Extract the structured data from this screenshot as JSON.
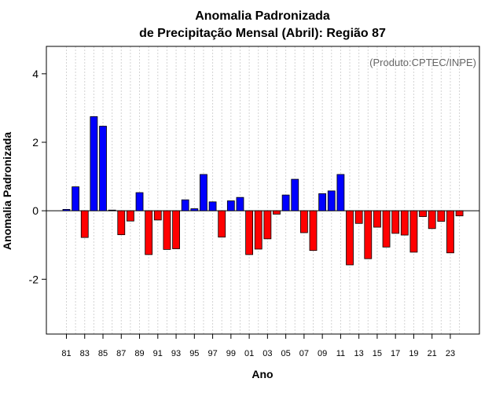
{
  "chart_data": {
    "type": "bar",
    "title_line1": "Anomalia Padronizada",
    "title_line2": "de Precipitação Mensal (Abril): Região 87",
    "xlabel": "Ano",
    "ylabel": "Anomalia Padronizada",
    "annotation": "(Produto:CPTEC/INPE)",
    "ylim": [
      -3.6,
      4.8
    ],
    "yticks": [
      -2,
      0,
      2,
      4
    ],
    "ytick_labels": [
      "-2",
      "0",
      "2",
      "4"
    ],
    "xtick_labels": [
      "81",
      "83",
      "85",
      "87",
      "89",
      "91",
      "93",
      "95",
      "97",
      "99",
      "01",
      "03",
      "05",
      "07",
      "09",
      "11",
      "13",
      "15",
      "17",
      "19",
      "21",
      "23"
    ],
    "categories": [
      "1981",
      "1982",
      "1983",
      "1984",
      "1985",
      "1986",
      "1987",
      "1988",
      "1989",
      "1990",
      "1991",
      "1992",
      "1993",
      "1994",
      "1995",
      "1996",
      "1997",
      "1998",
      "1999",
      "2000",
      "2001",
      "2002",
      "2003",
      "2004",
      "2005",
      "2006",
      "2007",
      "2008",
      "2009",
      "2010",
      "2011",
      "2012",
      "2013",
      "2014",
      "2015",
      "2016",
      "2017",
      "2018",
      "2019",
      "2020",
      "2021",
      "2022",
      "2023",
      "2024"
    ],
    "values": [
      0.04,
      0.7,
      -0.78,
      2.75,
      2.47,
      0.02,
      -0.7,
      -0.3,
      0.53,
      -1.28,
      -0.27,
      -1.13,
      -1.11,
      0.32,
      0.06,
      1.06,
      0.26,
      -0.77,
      0.29,
      0.39,
      -1.28,
      -1.12,
      -0.82,
      -0.1,
      0.46,
      0.92,
      -0.64,
      -1.16,
      0.5,
      0.58,
      1.06,
      -1.58,
      -0.37,
      -1.4,
      -0.48,
      -1.06,
      -0.66,
      -0.71,
      -1.21,
      -0.17,
      -0.52,
      -0.31,
      -1.23,
      -0.15
    ],
    "positive_color": "#0000ff",
    "negative_color": "#ff0000",
    "grid_color": "#d3d3d3"
  }
}
